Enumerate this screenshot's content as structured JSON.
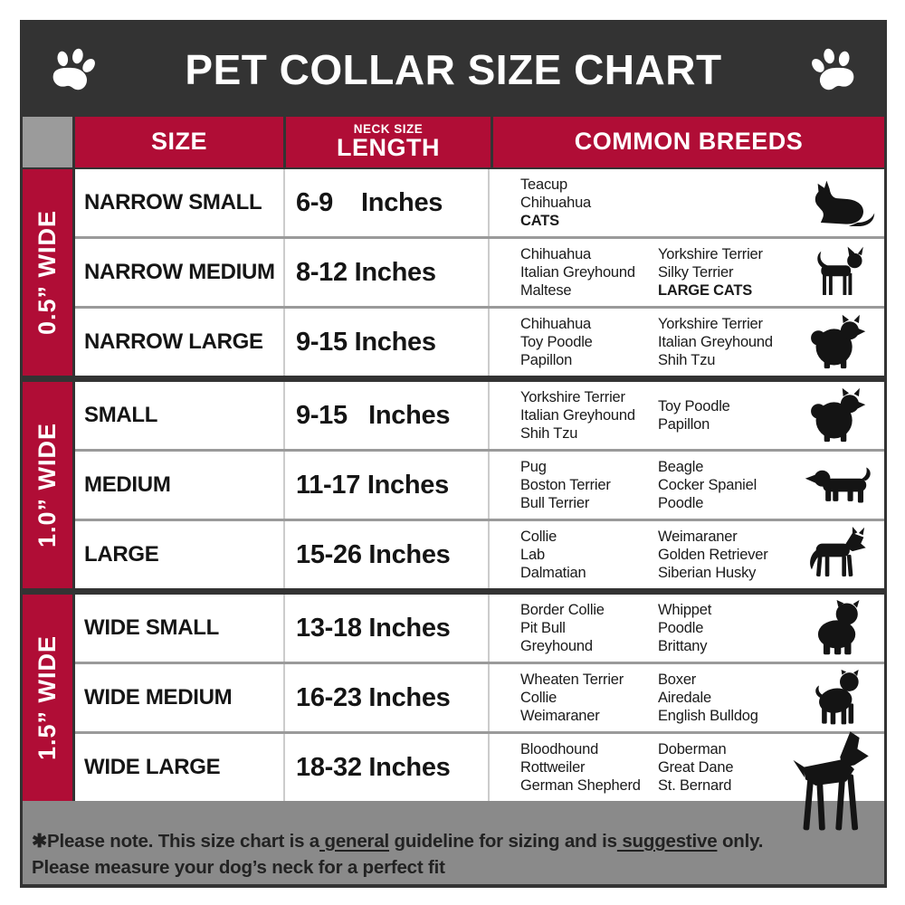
{
  "title_bar": {
    "title": "PET COLLAR SIZE CHART",
    "left_icon": "paw-icon",
    "right_icon": "paw-icon"
  },
  "header": {
    "size": "SIZE",
    "neck_size": "NECK SIZE",
    "length": "LENGTH",
    "breeds": "COMMON BREEDS"
  },
  "colors": {
    "accent_red": "#b00d36",
    "charcoal": "#333333",
    "corner_gray": "#9b9b9b",
    "footer_gray": "#8a8a8a",
    "separator_gray": "#9a9a9a"
  },
  "groups": [
    {
      "width_label": "0.5” WIDE",
      "rows": [
        {
          "size": "NARROW SMALL",
          "length": "6-9    Inches",
          "breeds_col1": [
            {
              "t": "Teacup"
            },
            {
              "t": "Chihuahua"
            },
            {
              "t": "CATS",
              "bold": true
            }
          ],
          "breeds_col2": [],
          "icon": "sitting-cat-icon"
        },
        {
          "size": "NARROW MEDIUM",
          "length": "8-12 Inches",
          "breeds_col1": [
            {
              "t": "Chihuahua"
            },
            {
              "t": "Italian Greyhound"
            },
            {
              "t": "Maltese"
            }
          ],
          "breeds_col2": [
            {
              "t": "Yorkshire Terrier"
            },
            {
              "t": "Silky Terrier"
            },
            {
              "t": "LARGE CATS",
              "bold": true
            }
          ],
          "icon": "standing-cat-icon"
        },
        {
          "size": "NARROW LARGE",
          "length": "9-15 Inches",
          "breeds_col1": [
            {
              "t": "Chihuahua"
            },
            {
              "t": "Toy Poodle"
            },
            {
              "t": "Papillon"
            }
          ],
          "breeds_col2": [
            {
              "t": "Yorkshire Terrier"
            },
            {
              "t": "Italian Greyhound"
            },
            {
              "t": "Shih Tzu"
            }
          ],
          "icon": "pomeranian-icon"
        }
      ]
    },
    {
      "width_label": "1.0” WIDE",
      "rows": [
        {
          "size": "SMALL",
          "length": "9-15   Inches",
          "breeds_col1": [
            {
              "t": "Yorkshire Terrier"
            },
            {
              "t": "Italian Greyhound"
            },
            {
              "t": "Shih Tzu"
            }
          ],
          "breeds_col2": [
            {
              "t": "Toy Poodle"
            },
            {
              "t": "Papillon"
            }
          ],
          "icon": "pomeranian-icon"
        },
        {
          "size": "MEDIUM",
          "length": "11-17 Inches",
          "breeds_col1": [
            {
              "t": "Pug"
            },
            {
              "t": "Boston Terrier"
            },
            {
              "t": "Bull Terrier"
            }
          ],
          "breeds_col2": [
            {
              "t": "Beagle"
            },
            {
              "t": "Cocker Spaniel"
            },
            {
              "t": "Poodle"
            }
          ],
          "icon": "beagle-icon"
        },
        {
          "size": "LARGE",
          "length": "15-26 Inches",
          "breeds_col1": [
            {
              "t": "Collie"
            },
            {
              "t": "Lab"
            },
            {
              "t": "Dalmatian"
            }
          ],
          "breeds_col2": [
            {
              "t": "Weimaraner"
            },
            {
              "t": "Golden Retriever"
            },
            {
              "t": "Siberian Husky"
            }
          ],
          "icon": "shepherd-icon"
        }
      ]
    },
    {
      "width_label": "1.5” WIDE",
      "rows": [
        {
          "size": "WIDE SMALL",
          "length": "13-18 Inches",
          "breeds_col1": [
            {
              "t": "Border Collie"
            },
            {
              "t": "Pit Bull"
            },
            {
              "t": "Greyhound"
            }
          ],
          "breeds_col2": [
            {
              "t": "Whippet"
            },
            {
              "t": "Poodle"
            },
            {
              "t": "Brittany"
            }
          ],
          "icon": "bulldog-icon"
        },
        {
          "size": "WIDE MEDIUM",
          "length": "16-23 Inches",
          "breeds_col1": [
            {
              "t": "Wheaten Terrier"
            },
            {
              "t": "Collie"
            },
            {
              "t": "Weimaraner"
            }
          ],
          "breeds_col2": [
            {
              "t": "Boxer"
            },
            {
              "t": "Airedale"
            },
            {
              "t": "English Bulldog"
            }
          ],
          "icon": "pitbull-icon"
        },
        {
          "size": "WIDE LARGE",
          "length": "18-32 Inches",
          "breeds_col1": [
            {
              "t": "Bloodhound"
            },
            {
              "t": "Rottweiler"
            },
            {
              "t": "German Shepherd"
            }
          ],
          "breeds_col2": [
            {
              "t": "Doberman"
            },
            {
              "t": "Great Dane"
            },
            {
              "t": "St. Bernard"
            }
          ],
          "icon": "doberman-icon"
        }
      ]
    }
  ],
  "footer": {
    "line1": [
      {
        "t": "✱Please note. This size chart is a"
      },
      {
        "t": " general",
        "underline": true
      },
      {
        "t": " guideline for sizing and is"
      },
      {
        "t": " suggestive",
        "underline": true
      },
      {
        "t": " only."
      }
    ],
    "line2": "Please measure your dog’s neck for a perfect fit"
  }
}
